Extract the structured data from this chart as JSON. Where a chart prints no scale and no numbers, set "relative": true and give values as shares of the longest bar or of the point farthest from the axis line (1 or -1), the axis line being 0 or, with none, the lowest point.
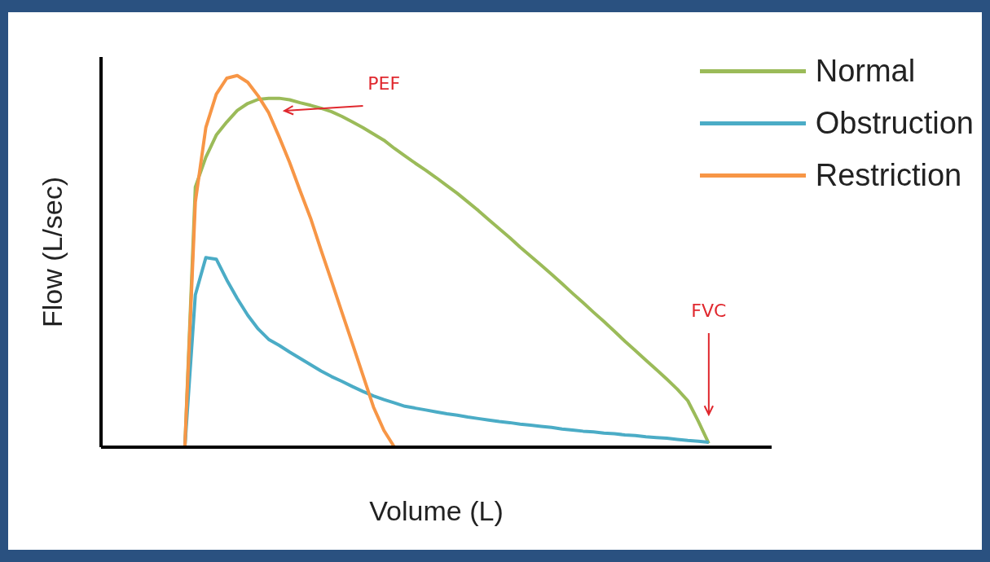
{
  "chart_data": {
    "type": "line",
    "relative": true,
    "xlabel": "Volume (L)",
    "ylabel": "Flow (L/sec)",
    "legend": "top right",
    "marker": "none",
    "line_style": "solid",
    "categories": [
      null,
      null,
      null,
      null,
      null,
      null,
      null,
      null,
      null,
      null,
      null,
      null,
      null,
      null,
      null,
      null,
      null,
      null,
      null,
      null,
      null,
      null,
      null,
      null,
      null,
      null,
      null,
      null,
      null,
      null,
      null,
      null,
      null,
      null,
      null,
      null,
      null,
      null,
      null,
      null,
      null,
      null,
      null,
      null,
      null,
      null,
      null,
      null,
      null,
      null,
      null,
      null,
      null,
      null,
      null,
      null,
      null,
      null,
      null,
      null,
      null,
      null,
      null,
      null,
      null
    ],
    "series": [
      {
        "name": "Normal",
        "color": "#9bbb59",
        "values": [
          null,
          null,
          null,
          null,
          null,
          null,
          null,
          null,
          0,
          0.7,
          0.78,
          0.84,
          0.875,
          0.906,
          0.925,
          0.936,
          0.939,
          0.939,
          0.935,
          0.927,
          0.92,
          0.912,
          0.903,
          0.89,
          0.875,
          0.86,
          0.843,
          0.826,
          0.804,
          0.784,
          0.764,
          0.745,
          0.725,
          0.704,
          0.683,
          0.66,
          0.637,
          0.612,
          0.588,
          0.564,
          0.538,
          0.514,
          0.49,
          0.465,
          0.44,
          0.414,
          0.389,
          0.363,
          0.338,
          0.312,
          0.285,
          0.26,
          0.234,
          0.209,
          0.183,
          0.156,
          0.125,
          0.07,
          0.01,
          null,
          null,
          null,
          null,
          null,
          null
        ]
      },
      {
        "name": "Obstruction",
        "color": "#4bacc6",
        "values": [
          null,
          null,
          null,
          null,
          null,
          null,
          null,
          null,
          0,
          0.41,
          0.51,
          0.506,
          0.45,
          0.4,
          0.355,
          0.318,
          0.29,
          0.274,
          0.256,
          0.239,
          0.222,
          0.205,
          0.19,
          0.177,
          0.163,
          0.15,
          0.138,
          0.128,
          0.119,
          0.11,
          0.105,
          0.1,
          0.095,
          0.09,
          0.086,
          0.081,
          0.077,
          0.073,
          0.069,
          0.066,
          0.062,
          0.059,
          0.056,
          0.053,
          0.049,
          0.046,
          0.043,
          0.041,
          0.038,
          0.036,
          0.033,
          0.031,
          0.028,
          0.026,
          0.024,
          0.021,
          0.018,
          0.016,
          0.013,
          null,
          null,
          null,
          null,
          null,
          null
        ]
      },
      {
        "name": "Restriction",
        "color": "#f79646",
        "values": [
          null,
          null,
          null,
          null,
          null,
          null,
          null,
          null,
          0,
          0.66,
          0.86,
          0.95,
          0.993,
          1,
          0.982,
          0.945,
          0.9,
          0.835,
          0.766,
          0.69,
          0.616,
          0.53,
          0.447,
          0.362,
          0.278,
          0.193,
          0.108,
          0.045,
          0,
          null,
          null,
          null,
          null,
          null,
          null,
          null,
          null,
          null,
          null,
          null,
          null,
          null,
          null,
          null,
          null,
          null,
          null,
          null,
          null,
          null,
          null,
          null,
          null,
          null,
          null,
          null,
          null,
          null,
          null,
          null,
          null,
          null,
          null,
          null,
          null
        ]
      }
    ],
    "annotations": [
      "PEF",
      "FVC"
    ]
  }
}
